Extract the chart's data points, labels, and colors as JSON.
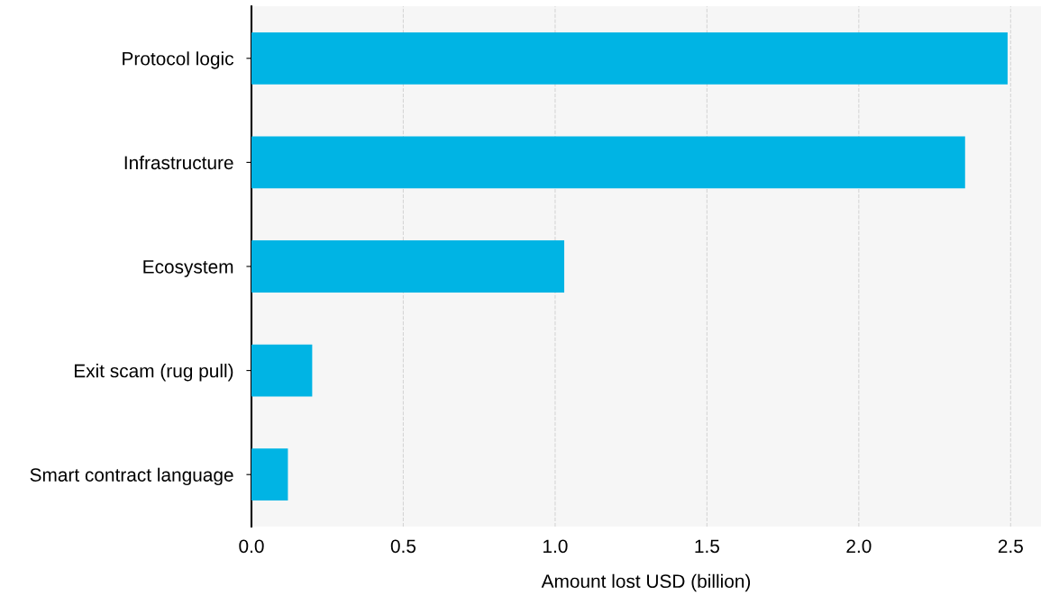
{
  "chart_data": {
    "type": "bar",
    "orientation": "horizontal",
    "xlabel": "Amount lost USD (billion)",
    "categories": [
      "Protocol logic",
      "Infrastructure",
      "Ecosystem",
      "Exit scam (rug pull)",
      "Smart contract language"
    ],
    "values": [
      2.49,
      2.35,
      1.03,
      0.2,
      0.12
    ],
    "color": "#00b4e4",
    "xlim": [
      0,
      2.6
    ],
    "xticks": [
      {
        "value": 0,
        "label": "0.0"
      },
      0.5,
      {
        "value": 1,
        "label": "1.0"
      },
      1.5,
      {
        "value": 2,
        "label": "2.0"
      },
      2.5
    ],
    "grid": "x",
    "legend": false
  }
}
